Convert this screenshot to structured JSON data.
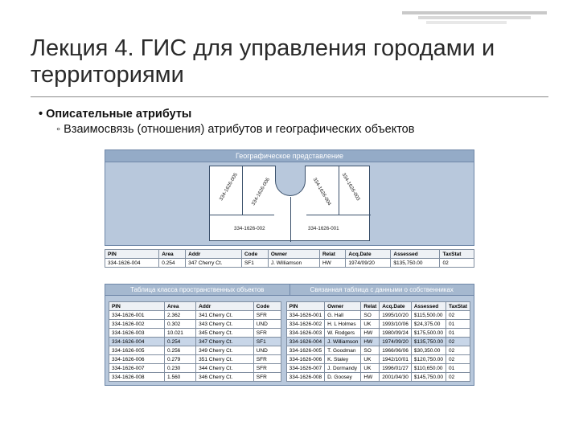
{
  "slide": {
    "title": "Лекция 4. ГИС для управления городами и территориями",
    "bullet1": "Описательные атрибуты",
    "bullet2": "Взаимосвязь (отношения) атрибутов и географических объектов"
  },
  "geo": {
    "header": "Географическое представление",
    "pins": [
      "334-1626-005",
      "334-1626-006",
      "334-1626-004",
      "334-1626-003",
      "334-1626-002",
      "334-1626-001"
    ]
  },
  "table1": {
    "headers": [
      "PIN",
      "Area",
      "Addr",
      "Code",
      "Owner",
      "Relat",
      "Acq.Date",
      "Assessed",
      "TaxStat"
    ],
    "row": [
      "334-1626-004",
      "0.254",
      "347 Cherry Ct.",
      "SF1",
      "J. Williamson",
      "HW",
      "1974/09/20",
      "$135,750.00",
      "02"
    ]
  },
  "dual": {
    "left_header": "Таблица класса пространственных объектов",
    "right_header": "Связанная таблица с данными о собственниках"
  },
  "left": {
    "headers": [
      "PIN",
      "Area",
      "Addr",
      "Code"
    ],
    "rows": [
      [
        "334-1626-001",
        "2.362",
        "341 Cherry Ct.",
        "SFR"
      ],
      [
        "334-1626-002",
        "0.302",
        "343 Cherry Ct.",
        "UND"
      ],
      [
        "334-1626-003",
        "10.021",
        "345 Cherry Ct.",
        "SFR"
      ],
      [
        "334-1626-004",
        "0.254",
        "347 Cherry Ct.",
        "SF1"
      ],
      [
        "334-1626-005",
        "0.256",
        "349 Cherry Ct.",
        "UND"
      ],
      [
        "334-1626-006",
        "0.279",
        "351 Cherry Ct.",
        "SFR"
      ],
      [
        "334-1626-007",
        "0.230",
        "344 Cherry Ct.",
        "SFR"
      ],
      [
        "334-1626-008",
        "1.560",
        "346 Cherry Ct.",
        "SFR"
      ]
    ],
    "hl_index": 3
  },
  "right": {
    "headers": [
      "PIN",
      "Owner",
      "Relat",
      "Acq.Date",
      "Assessed",
      "TaxStat"
    ],
    "rows": [
      [
        "334-1626-001",
        "G. Hall",
        "SO",
        "1995/10/20",
        "$115,500.00",
        "02"
      ],
      [
        "334-1626-002",
        "H. L Holmes",
        "UK",
        "1993/10/06",
        "$24,375.00",
        "01"
      ],
      [
        "334-1626-003",
        "W. Rodgers",
        "HW",
        "1980/09/24",
        "$175,500.00",
        "01"
      ],
      [
        "334-1626-004",
        "J. Williamson",
        "HW",
        "1974/09/20",
        "$135,750.00",
        "02"
      ],
      [
        "334-1626-005",
        "T. Goodman",
        "SO",
        "1966/06/06",
        "$30,350.00",
        "02"
      ],
      [
        "334-1626-006",
        "K. Staley",
        "UK",
        "1942/10/01",
        "$120,750.00",
        "02"
      ],
      [
        "334-1626-007",
        "J. Dormandy",
        "UK",
        "1996/01/27",
        "$110,650.00",
        "01"
      ],
      [
        "334-1626-008",
        "D. Goosey",
        "HW",
        "2001/04/30",
        "$145,750.00",
        "02"
      ]
    ],
    "hl_index": 3
  },
  "style": {
    "panel_bg": "#b8c8dc",
    "panel_border": "#6f87a8",
    "header_bg": "#94abc7",
    "hl_bg": "#c8d6e8",
    "title_color": "#2a2a2a"
  }
}
